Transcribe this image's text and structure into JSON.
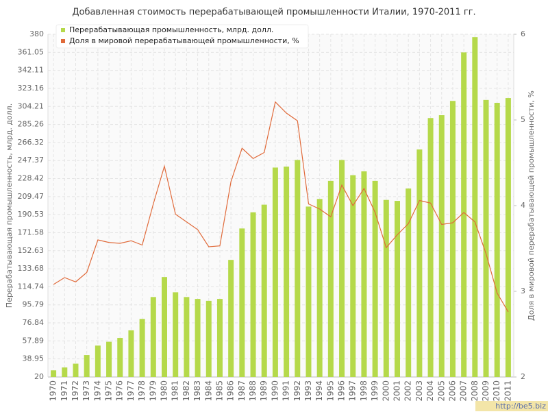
{
  "chart_data": {
    "type": "bar-line",
    "title": "Добавленная стоимость перерабатывающей промышленности Италии, 1970-2011 гг.",
    "ylabel": "Перерабатывающая промышленность, млрд. долл.",
    "y2label": "Доля в мировой перерабатывающей промышленности, %",
    "watermark": "http://be5.biz",
    "categories": [
      "1970",
      "1971",
      "1972",
      "1973",
      "1974",
      "1975",
      "1976",
      "1977",
      "1978",
      "1979",
      "1980",
      "1981",
      "1982",
      "1983",
      "1984",
      "1985",
      "1986",
      "1987",
      "1988",
      "1989",
      "1990",
      "1991",
      "1992",
      "1993",
      "1994",
      "1995",
      "1996",
      "1997",
      "1998",
      "1999",
      "2000",
      "2001",
      "2002",
      "2003",
      "2004",
      "2005",
      "2006",
      "2007",
      "2008",
      "2009",
      "2010",
      "2011"
    ],
    "series": [
      {
        "name": "Перерабатывающая промышленность, млрд. долл.",
        "color": "#b5d94a",
        "type": "bar",
        "values": [
          27,
          30,
          34,
          43,
          53,
          57,
          61,
          69,
          81,
          104,
          125,
          109,
          104,
          102,
          100,
          102,
          143,
          176,
          193,
          201,
          240,
          241,
          248,
          199,
          207,
          226,
          248,
          232,
          236,
          226,
          206,
          205,
          218,
          259,
          292,
          295,
          310,
          361,
          377,
          311,
          308,
          313
        ]
      },
      {
        "name": "Доля в мировой перерабатывающей промышленности, %",
        "color": "#e06a3a",
        "type": "line",
        "axis": "y2",
        "values": [
          3.08,
          3.16,
          3.11,
          3.22,
          3.6,
          3.57,
          3.56,
          3.59,
          3.54,
          4.02,
          4.46,
          3.9,
          3.81,
          3.72,
          3.52,
          3.53,
          4.28,
          4.67,
          4.55,
          4.62,
          5.21,
          5.08,
          4.99,
          4.02,
          3.96,
          3.87,
          4.24,
          4.0,
          4.2,
          3.92,
          3.51,
          3.66,
          3.79,
          4.06,
          4.03,
          3.78,
          3.8,
          3.92,
          3.81,
          3.44,
          2.98,
          2.76
        ]
      }
    ],
    "ylim": [
      20,
      380
    ],
    "yticks": [
      20,
      38.95,
      57.89,
      76.84,
      95.79,
      114.74,
      133.68,
      152.63,
      171.58,
      190.53,
      209.47,
      228.42,
      247.37,
      266.32,
      285.26,
      304.21,
      323.16,
      342.11,
      361.05,
      380
    ],
    "y2lim": [
      2,
      6
    ],
    "y2ticks": [
      2,
      3,
      4,
      5,
      6
    ],
    "grid": true,
    "legend": "top-left"
  }
}
